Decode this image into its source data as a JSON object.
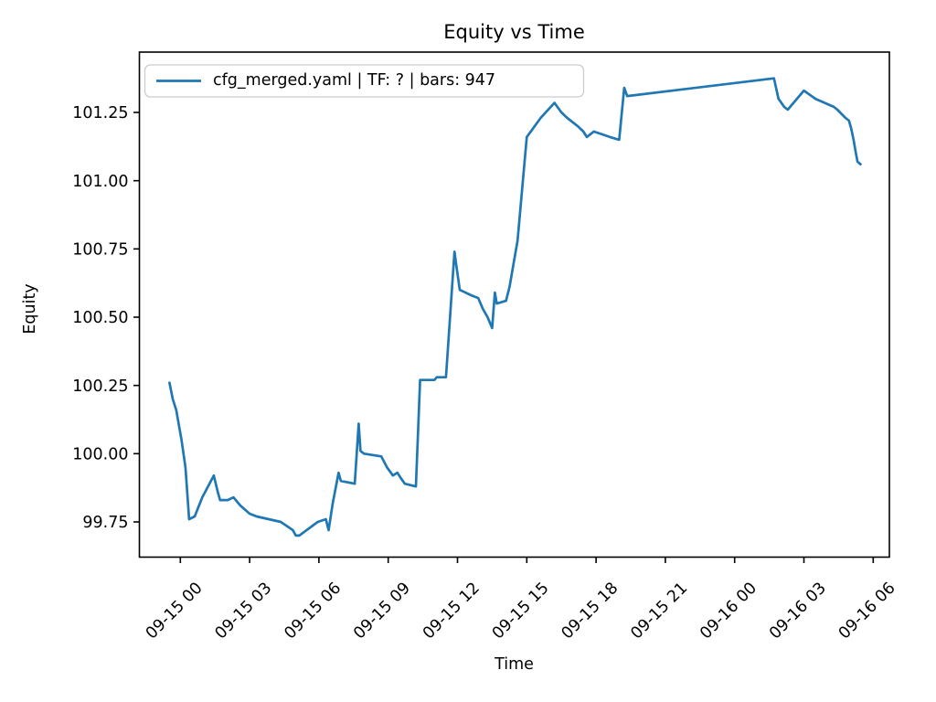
{
  "figure": {
    "title": "Equity vs Time",
    "xlabel": "Time",
    "ylabel": "Equity"
  },
  "legend": {
    "entry": "cfg_merged.yaml | TF: ? | bars: 947"
  },
  "chart_data": {
    "type": "line",
    "title": "Equity vs Time",
    "xlabel": "Time",
    "ylabel": "Equity",
    "legend_entries": [
      "cfg_merged.yaml | TF: ? | bars: 947"
    ],
    "legend_position": "upper left",
    "line_color": "#1f77b4",
    "x_unit": "hours since 09-15 00:00",
    "x_tick_hours": [
      0,
      3,
      6,
      9,
      12,
      15,
      18,
      21,
      24,
      27,
      30
    ],
    "x_tick_labels": [
      "09-15 00",
      "09-15 03",
      "09-15 06",
      "09-15 09",
      "09-15 12",
      "09-15 15",
      "09-15 18",
      "09-15 21",
      "09-16 00",
      "09-16 03",
      "09-16 06"
    ],
    "x_tick_rotation_deg": 45,
    "y_tick_values": [
      99.75,
      100.0,
      100.25,
      100.5,
      100.75,
      101.0,
      101.25
    ],
    "y_tick_labels": [
      "99.75",
      "100.00",
      "100.25",
      "100.50",
      "100.75",
      "101.00",
      "101.25"
    ],
    "xlim_hours": [
      -1.78,
      30.71
    ],
    "ylim": [
      99.62,
      101.47
    ],
    "grid": false,
    "series": [
      {
        "name": "cfg_merged.yaml | TF: ? | bars: 947",
        "points": [
          [
            -0.47,
            100.26
          ],
          [
            -0.33,
            100.2
          ],
          [
            -0.18,
            100.16
          ],
          [
            0.05,
            100.05
          ],
          [
            0.22,
            99.95
          ],
          [
            0.38,
            99.76
          ],
          [
            0.62,
            99.77
          ],
          [
            0.95,
            99.84
          ],
          [
            1.45,
            99.92
          ],
          [
            1.62,
            99.86
          ],
          [
            1.72,
            99.83
          ],
          [
            2.05,
            99.83
          ],
          [
            2.3,
            99.84
          ],
          [
            2.6,
            99.81
          ],
          [
            3.0,
            99.78
          ],
          [
            3.3,
            99.77
          ],
          [
            4.35,
            99.75
          ],
          [
            4.87,
            99.72
          ],
          [
            5.0,
            99.7
          ],
          [
            5.15,
            99.7
          ],
          [
            5.95,
            99.75
          ],
          [
            6.3,
            99.76
          ],
          [
            6.42,
            99.72
          ],
          [
            6.6,
            99.82
          ],
          [
            6.85,
            99.93
          ],
          [
            6.95,
            99.9
          ],
          [
            7.55,
            99.89
          ],
          [
            7.72,
            100.11
          ],
          [
            7.8,
            100.01
          ],
          [
            7.95,
            100.0
          ],
          [
            8.7,
            99.99
          ],
          [
            8.95,
            99.95
          ],
          [
            9.2,
            99.92
          ],
          [
            9.4,
            99.93
          ],
          [
            9.55,
            99.91
          ],
          [
            9.72,
            99.89
          ],
          [
            10.2,
            99.88
          ],
          [
            10.38,
            100.27
          ],
          [
            11.0,
            100.27
          ],
          [
            11.1,
            100.28
          ],
          [
            11.5,
            100.28
          ],
          [
            11.87,
            100.74
          ],
          [
            11.95,
            100.69
          ],
          [
            12.1,
            100.6
          ],
          [
            12.6,
            100.58
          ],
          [
            12.9,
            100.57
          ],
          [
            13.1,
            100.53
          ],
          [
            13.3,
            100.5
          ],
          [
            13.5,
            100.46
          ],
          [
            13.62,
            100.59
          ],
          [
            13.7,
            100.55
          ],
          [
            14.1,
            100.56
          ],
          [
            14.25,
            100.61
          ],
          [
            14.6,
            100.78
          ],
          [
            15.0,
            101.16
          ],
          [
            15.6,
            101.23
          ],
          [
            16.2,
            101.285
          ],
          [
            16.5,
            101.25
          ],
          [
            16.75,
            101.23
          ],
          [
            17.2,
            101.2
          ],
          [
            17.45,
            101.18
          ],
          [
            17.6,
            101.16
          ],
          [
            17.9,
            101.18
          ],
          [
            18.6,
            101.16
          ],
          [
            19.0,
            101.15
          ],
          [
            19.22,
            101.34
          ],
          [
            19.35,
            101.31
          ],
          [
            25.7,
            101.375
          ],
          [
            25.9,
            101.3
          ],
          [
            26.15,
            101.27
          ],
          [
            26.3,
            101.26
          ],
          [
            27.0,
            101.33
          ],
          [
            27.5,
            101.3
          ],
          [
            28.3,
            101.27
          ],
          [
            28.45,
            101.26
          ],
          [
            28.8,
            101.23
          ],
          [
            28.95,
            101.22
          ],
          [
            29.05,
            101.19
          ],
          [
            29.15,
            101.15
          ],
          [
            29.25,
            101.1
          ],
          [
            29.32,
            101.07
          ],
          [
            29.45,
            101.06
          ]
        ]
      }
    ]
  }
}
